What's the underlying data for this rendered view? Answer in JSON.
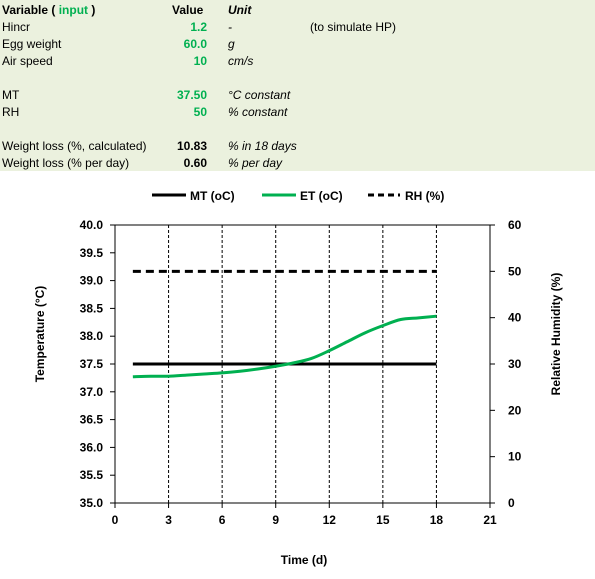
{
  "table": {
    "header": {
      "variable": "Variable",
      "open_paren": "(",
      "input_label": "input",
      "close_paren": ")",
      "value": "Value",
      "unit": "Unit"
    },
    "rows": [
      {
        "label": "Hincr",
        "value": "1.2",
        "unit": "-",
        "note": "(to simulate HP)",
        "input": true
      },
      {
        "label": "Egg weight",
        "value": "60.0",
        "unit": "g",
        "note": "",
        "input": true
      },
      {
        "label": "Air speed",
        "value": "10",
        "unit": "cm/s",
        "note": "",
        "input": true
      },
      {
        "label": "MT",
        "value": "37.50",
        "unit": "°C constant",
        "note": "",
        "input": true
      },
      {
        "label": "RH",
        "value": "50",
        "unit": "% constant",
        "note": "",
        "input": true
      },
      {
        "label": "Weight loss (%, calculated)",
        "value": "10.83",
        "unit": "% in 18 days",
        "note": "",
        "input": false
      },
      {
        "label": "Weight loss (% per day)",
        "value": "0.60",
        "unit": "% per day",
        "note": "",
        "input": false
      }
    ]
  },
  "colors": {
    "panel_bg": "#ebf1de",
    "input_green": "#00b050",
    "et_line": "#00b050",
    "mt_line": "#000000",
    "rh_line": "#000000"
  },
  "chart_data": {
    "type": "line",
    "xlabel": "Time (d)",
    "ylabel": "Temperature (°C)",
    "y2label": "Relative Humidity (%)",
    "xlim": [
      0,
      21
    ],
    "xticks": [
      0,
      3,
      6,
      9,
      12,
      15,
      18,
      21
    ],
    "ylim": [
      35.0,
      40.0
    ],
    "yticks": [
      35.0,
      35.5,
      36.0,
      36.5,
      37.0,
      37.5,
      38.0,
      38.5,
      39.0,
      39.5,
      40.0
    ],
    "y2lim": [
      0,
      60
    ],
    "y2ticks": [
      0,
      10,
      20,
      30,
      40,
      50,
      60
    ],
    "grid": "vertical dashed",
    "legend_position": "top",
    "series": [
      {
        "name": "MT (oC)",
        "axis": "left",
        "style": "solid",
        "color": "#000000",
        "x": [
          1,
          18
        ],
        "y": [
          37.5,
          37.5
        ]
      },
      {
        "name": "ET (oC)",
        "axis": "left",
        "style": "solid",
        "color": "#00b050",
        "x": [
          1,
          2,
          3,
          4,
          5,
          6,
          7,
          8,
          9,
          10,
          11,
          12,
          13,
          14,
          15,
          16,
          17,
          18
        ],
        "y": [
          37.27,
          37.28,
          37.28,
          37.3,
          37.32,
          37.34,
          37.37,
          37.41,
          37.46,
          37.52,
          37.6,
          37.74,
          37.9,
          38.06,
          38.19,
          38.3,
          38.33,
          38.36
        ]
      },
      {
        "name": "RH (%)",
        "axis": "right",
        "style": "dashed",
        "color": "#000000",
        "x": [
          1,
          18
        ],
        "y": [
          50,
          50
        ]
      }
    ]
  }
}
